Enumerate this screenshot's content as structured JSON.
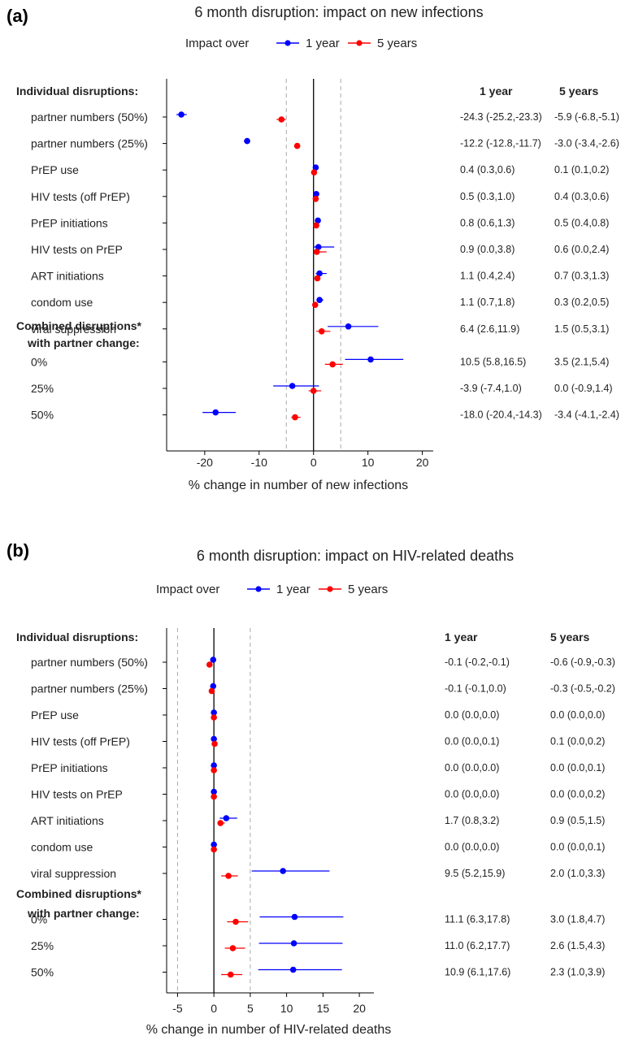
{
  "chart_data": [
    {
      "panel_label": "(a)",
      "type": "scatter",
      "title": "6 month disruption: impact on new infections",
      "legend": {
        "title": "Impact over",
        "placement": "top"
      },
      "series": [
        {
          "name": "1 year",
          "color": "#0000ff"
        },
        {
          "name": "5 years",
          "color": "#ff0000"
        }
      ],
      "section_headers": [
        "Individual disruptions:",
        "Combined disruptions*",
        "with partner change:"
      ],
      "table_headers": [
        "1 year",
        "5 years"
      ],
      "xlabel": "% change in number of new infections",
      "xlim": [
        -27,
        22
      ],
      "xticks": [
        -20,
        -10,
        0,
        10,
        20
      ],
      "xtick_labels": [
        "-20",
        "-10",
        "0",
        "10",
        "20"
      ],
      "ref_lines": [
        -5,
        0,
        5
      ],
      "rows": [
        {
          "label": "partner numbers (50%)",
          "y1": {
            "v": -24.3,
            "lo": -25.2,
            "hi": -23.3
          },
          "y5": {
            "v": -5.9,
            "lo": -6.8,
            "hi": -5.1
          },
          "text1": "-24.3 (-25.2,-23.3)",
          "text5": "-5.9 (-6.8,-5.1)"
        },
        {
          "label": "partner numbers (25%)",
          "y1": {
            "v": -12.2,
            "lo": -12.8,
            "hi": -11.7
          },
          "y5": {
            "v": -3.0,
            "lo": -3.4,
            "hi": -2.6
          },
          "text1": "-12.2 (-12.8,-11.7)",
          "text5": "-3.0 (-3.4,-2.6)"
        },
        {
          "label": "PrEP use",
          "y1": {
            "v": 0.4,
            "lo": 0.3,
            "hi": 0.6
          },
          "y5": {
            "v": 0.1,
            "lo": 0.1,
            "hi": 0.2
          },
          "text1": "0.4 (0.3,0.6)",
          "text5": "0.1 (0.1,0.2)"
        },
        {
          "label": "HIV tests (off PrEP)",
          "y1": {
            "v": 0.5,
            "lo": 0.3,
            "hi": 1.0
          },
          "y5": {
            "v": 0.4,
            "lo": 0.3,
            "hi": 0.6
          },
          "text1": "0.5 (0.3,1.0)",
          "text5": "0.4 (0.3,0.6)"
        },
        {
          "label": "PrEP initiations",
          "y1": {
            "v": 0.8,
            "lo": 0.6,
            "hi": 1.3
          },
          "y5": {
            "v": 0.5,
            "lo": 0.4,
            "hi": 0.8
          },
          "text1": "0.8 (0.6,1.3)",
          "text5": "0.5 (0.4,0.8)"
        },
        {
          "label": "HIV tests on PrEP",
          "y1": {
            "v": 0.9,
            "lo": 0.0,
            "hi": 3.8
          },
          "y5": {
            "v": 0.6,
            "lo": 0.0,
            "hi": 2.4
          },
          "text1": "0.9 (0.0,3.8)",
          "text5": "0.6 (0.0,2.4)"
        },
        {
          "label": "ART initiations",
          "y1": {
            "v": 1.1,
            "lo": 0.4,
            "hi": 2.4
          },
          "y5": {
            "v": 0.7,
            "lo": 0.3,
            "hi": 1.3
          },
          "text1": "1.1 (0.4,2.4)",
          "text5": "0.7 (0.3,1.3)"
        },
        {
          "label": "condom use",
          "y1": {
            "v": 1.1,
            "lo": 0.7,
            "hi": 1.8
          },
          "y5": {
            "v": 0.3,
            "lo": 0.2,
            "hi": 0.5
          },
          "text1": "1.1 (0.7,1.8)",
          "text5": "0.3 (0.2,0.5)"
        },
        {
          "label": "viral suppression",
          "y1": {
            "v": 6.4,
            "lo": 2.6,
            "hi": 11.9
          },
          "y5": {
            "v": 1.5,
            "lo": 0.5,
            "hi": 3.1
          },
          "text1": "6.4 (2.6,11.9)",
          "text5": "1.5 (0.5,3.1)"
        },
        {
          "label": "0%",
          "y1": {
            "v": 10.5,
            "lo": 5.8,
            "hi": 16.5
          },
          "y5": {
            "v": 3.5,
            "lo": 2.1,
            "hi": 5.4
          },
          "text1": "10.5 (5.8,16.5)",
          "text5": "3.5 (2.1,5.4)"
        },
        {
          "label": "25%",
          "y1": {
            "v": -3.9,
            "lo": -7.4,
            "hi": 1.0
          },
          "y5": {
            "v": 0.0,
            "lo": -0.9,
            "hi": 1.4
          },
          "text1": "-3.9 (-7.4,1.0)",
          "text5": "0.0 (-0.9,1.4)"
        },
        {
          "label": "50%",
          "y1": {
            "v": -18.0,
            "lo": -20.4,
            "hi": -14.3
          },
          "y5": {
            "v": -3.4,
            "lo": -4.1,
            "hi": -2.4
          },
          "text1": "-18.0 (-20.4,-14.3)",
          "text5": "-3.4 (-4.1,-2.4)"
        }
      ]
    },
    {
      "panel_label": "(b)",
      "type": "scatter",
      "title": "6 month disruption: impact on HIV-related deaths",
      "legend": {
        "title": "Impact over",
        "placement": "top"
      },
      "series": [
        {
          "name": "1 year",
          "color": "#0000ff"
        },
        {
          "name": "5 years",
          "color": "#ff0000"
        }
      ],
      "section_headers": [
        "Individual disruptions:",
        "Combined disruptions*",
        "with partner change:"
      ],
      "table_headers": [
        "1 year",
        "5 years"
      ],
      "xlabel": "% change in number of HIV-related deaths",
      "xlim": [
        -6.5,
        22
      ],
      "xticks": [
        -5,
        0,
        5,
        10,
        15,
        20
      ],
      "xtick_labels": [
        "-5",
        "0",
        "5",
        "10",
        "15",
        "20"
      ],
      "ref_lines": [
        -5,
        0,
        5
      ],
      "rows": [
        {
          "label": "partner numbers (50%)",
          "y1": {
            "v": -0.1,
            "lo": -0.2,
            "hi": -0.1
          },
          "y5": {
            "v": -0.6,
            "lo": -0.9,
            "hi": -0.3
          },
          "text1": "-0.1 (-0.2,-0.1)",
          "text5": "-0.6 (-0.9,-0.3)"
        },
        {
          "label": "partner numbers (25%)",
          "y1": {
            "v": -0.1,
            "lo": -0.1,
            "hi": 0.0
          },
          "y5": {
            "v": -0.3,
            "lo": -0.5,
            "hi": -0.2
          },
          "text1": "-0.1 (-0.1,0.0)",
          "text5": "-0.3 (-0.5,-0.2)"
        },
        {
          "label": "PrEP use",
          "y1": {
            "v": 0.0,
            "lo": 0.0,
            "hi": 0.0
          },
          "y5": {
            "v": 0.0,
            "lo": 0.0,
            "hi": 0.0
          },
          "text1": "0.0 (0.0,0.0)",
          "text5": "0.0 (0.0,0.0)"
        },
        {
          "label": "HIV tests (off PrEP)",
          "y1": {
            "v": 0.0,
            "lo": 0.0,
            "hi": 0.1
          },
          "y5": {
            "v": 0.1,
            "lo": 0.0,
            "hi": 0.2
          },
          "text1": "0.0 (0.0,0.1)",
          "text5": "0.1 (0.0,0.2)"
        },
        {
          "label": "PrEP initiations",
          "y1": {
            "v": 0.0,
            "lo": 0.0,
            "hi": 0.0
          },
          "y5": {
            "v": 0.0,
            "lo": 0.0,
            "hi": 0.1
          },
          "text1": "0.0 (0.0,0.0)",
          "text5": "0.0 (0.0,0.1)"
        },
        {
          "label": "HIV tests on PrEP",
          "y1": {
            "v": 0.0,
            "lo": 0.0,
            "hi": 0.0
          },
          "y5": {
            "v": 0.0,
            "lo": 0.0,
            "hi": 0.2
          },
          "text1": "0.0 (0.0,0.0)",
          "text5": "0.0 (0.0,0.2)"
        },
        {
          "label": "ART initiations",
          "y1": {
            "v": 1.7,
            "lo": 0.8,
            "hi": 3.2
          },
          "y5": {
            "v": 0.9,
            "lo": 0.5,
            "hi": 1.5
          },
          "text1": "1.7 (0.8,3.2)",
          "text5": "0.9 (0.5,1.5)"
        },
        {
          "label": "condom use",
          "y1": {
            "v": 0.0,
            "lo": 0.0,
            "hi": 0.0
          },
          "y5": {
            "v": 0.0,
            "lo": 0.0,
            "hi": 0.1
          },
          "text1": "0.0 (0.0,0.0)",
          "text5": "0.0 (0.0,0.1)"
        },
        {
          "label": "viral suppression",
          "y1": {
            "v": 9.5,
            "lo": 5.2,
            "hi": 15.9
          },
          "y5": {
            "v": 2.0,
            "lo": 1.0,
            "hi": 3.3
          },
          "text1": "9.5 (5.2,15.9)",
          "text5": "2.0 (1.0,3.3)"
        },
        {
          "label": "0%",
          "y1": {
            "v": 11.1,
            "lo": 6.3,
            "hi": 17.8
          },
          "y5": {
            "v": 3.0,
            "lo": 1.8,
            "hi": 4.7
          },
          "text1": "11.1 (6.3,17.8)",
          "text5": "3.0 (1.8,4.7)"
        },
        {
          "label": "25%",
          "y1": {
            "v": 11.0,
            "lo": 6.2,
            "hi": 17.7
          },
          "y5": {
            "v": 2.6,
            "lo": 1.5,
            "hi": 4.3
          },
          "text1": "11.0 (6.2,17.7)",
          "text5": "2.6 (1.5,4.3)"
        },
        {
          "label": "50%",
          "y1": {
            "v": 10.9,
            "lo": 6.1,
            "hi": 17.6
          },
          "y5": {
            "v": 2.3,
            "lo": 1.0,
            "hi": 3.9
          },
          "text1": "10.9 (6.1,17.6)",
          "text5": "2.3 (1.0,3.9)"
        }
      ]
    }
  ]
}
